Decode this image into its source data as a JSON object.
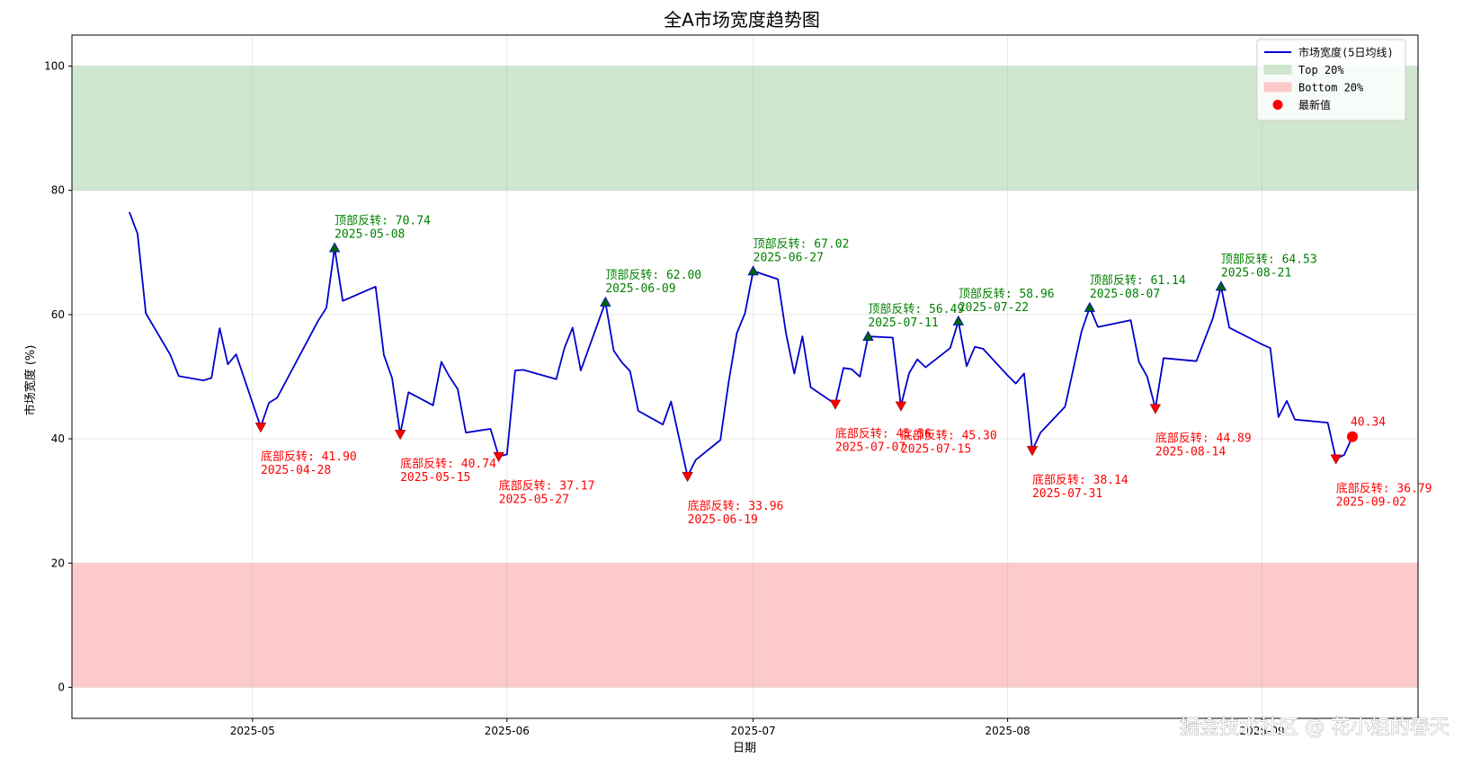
{
  "chart_data": {
    "type": "line",
    "title": "全A市场宽度趋势图",
    "xlabel": "日期",
    "ylabel": "市场宽度 (%)",
    "ylim": [
      -5,
      105
    ],
    "xlim": [
      "2025-04-09",
      "2025-09-20"
    ],
    "grid": true,
    "y_ticks": [
      0,
      20,
      40,
      60,
      80,
      100
    ],
    "x_ticks": [
      {
        "date": "2025-05-01",
        "label": "2025-05"
      },
      {
        "date": "2025-06-01",
        "label": "2025-06"
      },
      {
        "date": "2025-07-01",
        "label": "2025-07"
      },
      {
        "date": "2025-08-01",
        "label": "2025-08"
      },
      {
        "date": "2025-09-01",
        "label": "2025-09"
      }
    ],
    "bands": [
      {
        "name": "Top 20%",
        "from": 80,
        "to": 100,
        "color": "#cfe6cf"
      },
      {
        "name": "Bottom 20%",
        "from": 0,
        "to": 20,
        "color": "#fccaca"
      }
    ],
    "series": [
      {
        "name": "市场宽度(5日均线)",
        "color": "#0000cd",
        "points": [
          [
            "2025-04-16",
            76.5
          ],
          [
            "2025-04-17",
            73.0
          ],
          [
            "2025-04-18",
            60.2
          ],
          [
            "2025-04-21",
            53.5
          ],
          [
            "2025-04-22",
            50.1
          ],
          [
            "2025-04-25",
            49.4
          ],
          [
            "2025-04-26",
            49.8
          ],
          [
            "2025-04-27",
            57.8
          ],
          [
            "2025-04-28",
            52.0
          ],
          [
            "2025-04-29",
            53.6
          ],
          [
            "2025-05-02",
            41.9
          ],
          [
            "2025-05-03",
            45.8
          ],
          [
            "2025-05-04",
            46.6
          ],
          [
            "2025-05-09",
            59.0
          ],
          [
            "2025-05-10",
            61.1
          ],
          [
            "2025-05-11",
            70.74
          ],
          [
            "2025-05-12",
            62.2
          ],
          [
            "2025-05-16",
            64.5
          ],
          [
            "2025-05-17",
            53.5
          ],
          [
            "2025-05-18",
            49.8
          ],
          [
            "2025-05-19",
            40.74
          ],
          [
            "2025-05-20",
            47.5
          ],
          [
            "2025-05-23",
            45.4
          ],
          [
            "2025-05-24",
            52.4
          ],
          [
            "2025-05-25",
            50.0
          ],
          [
            "2025-05-26",
            48.0
          ],
          [
            "2025-05-27",
            41.0
          ],
          [
            "2025-05-30",
            41.6
          ],
          [
            "2025-05-31",
            37.17
          ],
          [
            "2025-06-01",
            37.5
          ],
          [
            "2025-06-02",
            51.0
          ],
          [
            "2025-06-03",
            51.1
          ],
          [
            "2025-06-07",
            49.6
          ],
          [
            "2025-06-08",
            54.6
          ],
          [
            "2025-06-09",
            57.9
          ],
          [
            "2025-06-10",
            51.0
          ],
          [
            "2025-06-13",
            62.0
          ],
          [
            "2025-06-14",
            54.2
          ],
          [
            "2025-06-15",
            52.3
          ],
          [
            "2025-06-16",
            50.9
          ],
          [
            "2025-06-17",
            44.5
          ],
          [
            "2025-06-20",
            42.3
          ],
          [
            "2025-06-21",
            46.0
          ],
          [
            "2025-06-23",
            33.96
          ],
          [
            "2025-06-24",
            36.6
          ],
          [
            "2025-06-27",
            39.8
          ],
          [
            "2025-06-28",
            49.0
          ],
          [
            "2025-06-29",
            57.0
          ],
          [
            "2025-06-30",
            60.2
          ],
          [
            "2025-07-01",
            67.02
          ],
          [
            "2025-07-04",
            65.7
          ],
          [
            "2025-07-05",
            57.0
          ],
          [
            "2025-07-06",
            50.5
          ],
          [
            "2025-07-07",
            56.5
          ],
          [
            "2025-07-08",
            48.3
          ],
          [
            "2025-07-11",
            45.6
          ],
          [
            "2025-07-12",
            51.4
          ],
          [
            "2025-07-13",
            51.2
          ],
          [
            "2025-07-14",
            50.0
          ],
          [
            "2025-07-15",
            56.49
          ],
          [
            "2025-07-18",
            56.3
          ],
          [
            "2025-07-19",
            45.3
          ],
          [
            "2025-07-20",
            50.6
          ],
          [
            "2025-07-21",
            52.8
          ],
          [
            "2025-07-22",
            51.5
          ],
          [
            "2025-07-25",
            54.6
          ],
          [
            "2025-07-26",
            58.96
          ],
          [
            "2025-07-27",
            51.7
          ],
          [
            "2025-07-28",
            54.8
          ],
          [
            "2025-07-29",
            54.5
          ],
          [
            "2025-08-01",
            50.2
          ],
          [
            "2025-08-02",
            48.9
          ],
          [
            "2025-08-03",
            50.5
          ],
          [
            "2025-08-04",
            38.14
          ],
          [
            "2025-08-05",
            41.0
          ],
          [
            "2025-08-08",
            45.2
          ],
          [
            "2025-08-10",
            57.3
          ],
          [
            "2025-08-11",
            61.14
          ],
          [
            "2025-08-12",
            58.0
          ],
          [
            "2025-08-16",
            59.1
          ],
          [
            "2025-08-17",
            52.4
          ],
          [
            "2025-08-18",
            50.0
          ],
          [
            "2025-08-19",
            44.89
          ],
          [
            "2025-08-20",
            53.0
          ],
          [
            "2025-08-24",
            52.5
          ],
          [
            "2025-08-26",
            59.4
          ],
          [
            "2025-08-27",
            64.53
          ],
          [
            "2025-08-28",
            57.9
          ],
          [
            "2025-09-01",
            55.2
          ],
          [
            "2025-09-02",
            54.6
          ],
          [
            "2025-09-03",
            43.5
          ],
          [
            "2025-09-04",
            46.1
          ],
          [
            "2025-09-05",
            43.1
          ],
          [
            "2025-09-09",
            42.6
          ],
          [
            "2025-09-10",
            36.79
          ],
          [
            "2025-09-11",
            37.4
          ],
          [
            "2025-09-12",
            40.34
          ]
        ]
      }
    ],
    "top_reversals": [
      {
        "x": "2025-05-11",
        "y": 70.74,
        "text": "顶部反转: 70.74",
        "date_text": "2025-05-08"
      },
      {
        "x": "2025-06-13",
        "y": 62.0,
        "text": "顶部反转: 62.00",
        "date_text": "2025-06-09"
      },
      {
        "x": "2025-07-01",
        "y": 67.02,
        "text": "顶部反转: 67.02",
        "date_text": "2025-06-27"
      },
      {
        "x": "2025-07-15",
        "y": 56.49,
        "text": "顶部反转: 56.49",
        "date_text": "2025-07-11"
      },
      {
        "x": "2025-07-26",
        "y": 58.96,
        "text": "顶部反转: 58.96",
        "date_text": "2025-07-22"
      },
      {
        "x": "2025-08-11",
        "y": 61.14,
        "text": "顶部反转: 61.14",
        "date_text": "2025-08-07"
      },
      {
        "x": "2025-08-27",
        "y": 64.53,
        "text": "顶部反转: 64.53",
        "date_text": "2025-08-21"
      }
    ],
    "bottom_reversals": [
      {
        "x": "2025-05-02",
        "y": 41.9,
        "text": "底部反转: 41.90",
        "date_text": "2025-04-28"
      },
      {
        "x": "2025-05-19",
        "y": 40.74,
        "text": "底部反转: 40.74",
        "date_text": "2025-05-15"
      },
      {
        "x": "2025-05-31",
        "y": 37.17,
        "text": "底部反转: 37.17",
        "date_text": "2025-05-27"
      },
      {
        "x": "2025-06-23",
        "y": 33.96,
        "text": "底部反转: 33.96",
        "date_text": "2025-06-19"
      },
      {
        "x": "2025-07-11",
        "y": 45.6,
        "text": "底部反转: 45.56",
        "date_text": "2025-07-07"
      },
      {
        "x": "2025-07-19",
        "y": 45.3,
        "text": "底部反转: 45.30",
        "date_text": "2025-07-15"
      },
      {
        "x": "2025-08-04",
        "y": 38.14,
        "text": "底部反转: 38.14",
        "date_text": "2025-07-31"
      },
      {
        "x": "2025-08-19",
        "y": 44.89,
        "text": "底部反转: 44.89",
        "date_text": "2025-08-14"
      },
      {
        "x": "2025-09-10",
        "y": 36.79,
        "text": "底部反转: 36.79",
        "date_text": "2025-09-02"
      }
    ],
    "latest": {
      "x": "2025-09-12",
      "y": 40.34,
      "label": "40.34",
      "color": "#ff0000"
    },
    "legend": {
      "position": "top-right",
      "entries": [
        {
          "label": "市场宽度(5日均线)",
          "kind": "line",
          "color": "#0000cd"
        },
        {
          "label": "Top 20%",
          "kind": "patch",
          "color": "#cfe6cf"
        },
        {
          "label": "Bottom 20%",
          "kind": "patch",
          "color": "#fccaca"
        },
        {
          "label": "最新值",
          "kind": "dot",
          "color": "#ff0000"
        }
      ]
    }
  },
  "watermark": "掘金技术社区 @ 花小姐的春天"
}
